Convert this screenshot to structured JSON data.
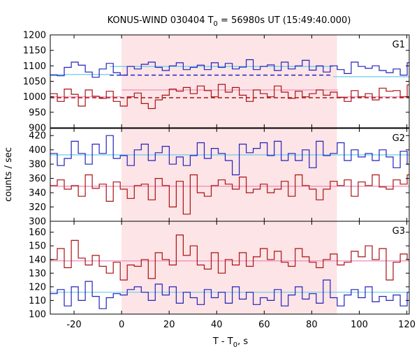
{
  "chart_data": {
    "type": "line",
    "title_main": "KONUS-WIND 030404 T",
    "title_sub": "0",
    "title_rest": " = 56980s UT (15:49:40.000)",
    "xlabel_main": "T - T",
    "xlabel_sub": "0",
    "xlabel_rest": ", s",
    "ylabel": "counts / sec",
    "xlim": [
      -30,
      121
    ],
    "x_ticks": [
      -20,
      0,
      20,
      40,
      60,
      80,
      100,
      120
    ],
    "x_tick_labels": [
      "-20",
      "0",
      "20",
      "40",
      "60",
      "80",
      "100",
      "120"
    ],
    "colors": {
      "blue": "#2222bb",
      "red": "#aa1111",
      "bg_blue": "#66ccee",
      "bg_red": "#ee88bb",
      "shade": "#fde4e6"
    },
    "interval": [
      0,
      90.6
    ],
    "panels": [
      {
        "name": "G1",
        "ylim": [
          900,
          1200
        ],
        "y_ticks": [
          900,
          950,
          1000,
          1050,
          1100,
          1150,
          1200
        ],
        "y_tick_labels": [
          "900",
          "950",
          "1000",
          "1050",
          "1100",
          "1150",
          "1200"
        ],
        "bin_width": 2.944,
        "x_start": -30,
        "series": [
          {
            "color": "blue",
            "values": [
              1070,
              1068,
              1095,
              1112,
              1102,
              1080,
              1063,
              1090,
              1108,
              1078,
              1070,
              1098,
              1090,
              1105,
              1112,
              1095,
              1085,
              1100,
              1110,
              1088,
              1095,
              1102,
              1088,
              1110,
              1095,
              1108,
              1090,
              1096,
              1120,
              1088,
              1098,
              1103,
              1085,
              1112,
              1090,
              1100,
              1118,
              1086,
              1100,
              1080,
              1100,
              1088,
              1075,
              1112,
              1098,
              1092,
              1100,
              1085,
              1078,
              1090,
              1070,
              1110,
              1060,
              1075,
              1110,
              1075,
              1050,
              1060,
              1045,
              1070,
              1080,
              1100
            ]
          },
          {
            "color": "red",
            "values": [
              1010,
              985,
              1025,
              1008,
              970,
              1022,
              1002,
              995,
              1018,
              985,
              970,
              1000,
              1012,
              978,
              962,
              990,
              1005,
              1025,
              1018,
              1030,
              1010,
              1035,
              1020,
              1000,
              1040,
              1015,
              1030,
              1005,
              985,
              1022,
              1010,
              1000,
              1035,
              1015,
              995,
              1018,
              1000,
              1010,
              1022,
              1005,
              1015,
              998,
              985,
              1020,
              1000,
              1010,
              990,
              1028,
              1018,
              1020,
              1000,
              1038,
              1005,
              1022,
              985,
              1010,
              1000,
              995,
              975,
              990,
              1010,
              1020,
              1005
            ]
          }
        ],
        "background": [
          {
            "color": "bg_blue",
            "level": 1072,
            "x0": -30,
            "x1": -5
          },
          {
            "color": "bg_blue",
            "level": 1098,
            "x0": -5,
            "x1": 89
          },
          {
            "color": "bg_blue",
            "level": 1065,
            "x0": 89,
            "x1": 121
          }
        ],
        "background_dashed": [
          {
            "color": "blue",
            "level": 1070,
            "x0": -5,
            "x1": 89
          },
          {
            "color": "red",
            "level": 997,
            "x0": -30,
            "x1": 121
          }
        ],
        "background_red": [
          {
            "color": "bg_red",
            "level": 1000,
            "x0": -30,
            "x1": 0
          },
          {
            "color": "bg_red",
            "level": 1022,
            "x0": 0,
            "x1": 91
          },
          {
            "color": "bg_red",
            "level": 1000,
            "x0": 91,
            "x1": 121
          }
        ]
      },
      {
        "name": "G2",
        "ylim": [
          300,
          430
        ],
        "y_ticks": [
          300,
          320,
          340,
          360,
          380,
          400,
          420
        ],
        "y_tick_labels": [
          "300",
          "320",
          "340",
          "360",
          "380",
          "400",
          "420"
        ],
        "bin_width": 2.944,
        "x_start": -30,
        "series": [
          {
            "color": "blue",
            "values": [
              395,
              378,
              388,
              412,
              395,
              380,
              408,
              395,
              420,
              388,
              392,
              378,
              400,
              408,
              385,
              396,
              405,
              380,
              390,
              378,
              392,
              410,
              388,
              402,
              395,
              385,
              365,
              408,
              396,
              402,
              410,
              392,
              412,
              385,
              395,
              385,
              400,
              375,
              412,
              392,
              395,
              410,
              385,
              400,
              390,
              395,
              385,
              400,
              390,
              375,
              398,
              380,
              395,
              395,
              405,
              400,
              395,
              390,
              395,
              395,
              392
            ]
          },
          {
            "color": "red",
            "values": [
              350,
              358,
              345,
              350,
              335,
              365,
              346,
              352,
              328,
              355,
              345,
              332,
              350,
              352,
              330,
              360,
              350,
              320,
              356,
              310,
              365,
              340,
              335,
              350,
              358,
              352,
              345,
              362,
              340,
              345,
              352,
              340,
              345,
              356,
              335,
              365,
              350,
              345,
              330,
              345,
              356,
              350,
              358,
              335,
              355,
              350,
              365,
              348,
              345,
              358,
              352,
              365,
              330,
              352,
              368,
              345,
              350,
              335,
              355,
              352,
              345,
              355,
              345
            ]
          }
        ],
        "background": [
          {
            "color": "bg_blue",
            "level": 393,
            "x0": -30,
            "x1": 121
          }
        ],
        "background_dashed": [],
        "background_red": [
          {
            "color": "bg_red",
            "level": 349,
            "x0": -30,
            "x1": 121
          }
        ]
      },
      {
        "name": "G3",
        "ylim": [
          100,
          168
        ],
        "y_ticks": [
          100,
          110,
          120,
          130,
          140,
          150,
          160
        ],
        "y_tick_labels": [
          "100",
          "110",
          "120",
          "130",
          "140",
          "150",
          "160"
        ],
        "bin_width": 2.944,
        "x_start": -30,
        "series": [
          {
            "color": "blue",
            "values": [
              115,
              118,
              106,
              120,
              110,
              124,
              113,
              104,
              112,
              115,
              114,
              118,
              120,
              116,
              110,
              122,
              114,
              120,
              108,
              116,
              112,
              107,
              118,
              112,
              116,
              108,
              120,
              111,
              116,
              107,
              112,
              110,
              118,
              106,
              114,
              120,
              111,
              115,
              108,
              125,
              112,
              106,
              114,
              118,
              112,
              120,
              109,
              113,
              110,
              114,
              106,
              116,
              118,
              114,
              112,
              118,
              116,
              108,
              114,
              118,
              108,
              114,
              122
            ]
          },
          {
            "color": "red",
            "values": [
              140,
              148,
              134,
              154,
              141,
              136,
              143,
              135,
              130,
              138,
              125,
              136,
              135,
              140,
              126,
              145,
              140,
              136,
              158,
              143,
              150,
              136,
              133,
              145,
              130,
              140,
              136,
              145,
              135,
              142,
              148,
              140,
              146,
              138,
              135,
              148,
              142,
              138,
              134,
              140,
              144,
              136,
              138,
              146,
              142,
              150,
              140,
              148,
              125,
              138,
              144,
              140,
              135,
              142,
              136,
              140,
              138,
              132,
              140,
              138,
              138,
              136,
              142
            ]
          }
        ],
        "background": [
          {
            "color": "bg_blue",
            "level": 116,
            "x0": -30,
            "x1": 121
          }
        ],
        "background_dashed": [],
        "background_red": [
          {
            "color": "bg_red",
            "level": 139,
            "x0": -30,
            "x1": 121
          }
        ]
      }
    ]
  }
}
